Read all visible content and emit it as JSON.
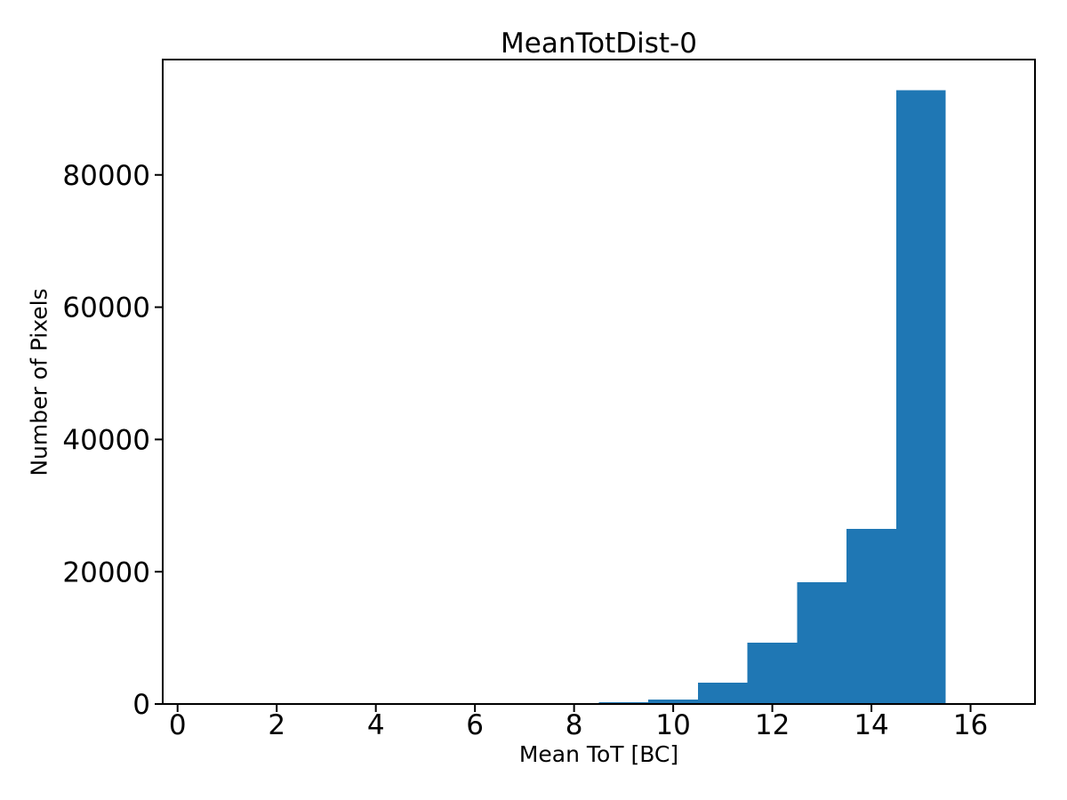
{
  "chart_data": {
    "type": "bar",
    "subtype": "histogram",
    "title": "MeanTotDist-0",
    "xlabel": "Mean ToT [BC]",
    "ylabel": "Number of Pixels",
    "bar_color": "#1f77b4",
    "axis_color": "#000000",
    "background_color": "#ffffff",
    "grid": false,
    "legend": null,
    "bin_edges": [
      0.5,
      1.5,
      2.5,
      3.5,
      4.5,
      5.5,
      6.5,
      7.5,
      8.5,
      9.5,
      10.5,
      11.5,
      12.5,
      13.5,
      14.5,
      15.5,
      16.5
    ],
    "counts": [
      0,
      0,
      0,
      0,
      0,
      0,
      0,
      0,
      250,
      700,
      3200,
      9300,
      18400,
      26500,
      92800,
      0
    ],
    "xlim": [
      -0.3,
      17.3
    ],
    "ylim": [
      0,
      97440
    ],
    "xticks": [
      0,
      2,
      4,
      6,
      8,
      10,
      12,
      14,
      16
    ],
    "yticks": [
      0,
      20000,
      40000,
      60000,
      80000
    ]
  }
}
